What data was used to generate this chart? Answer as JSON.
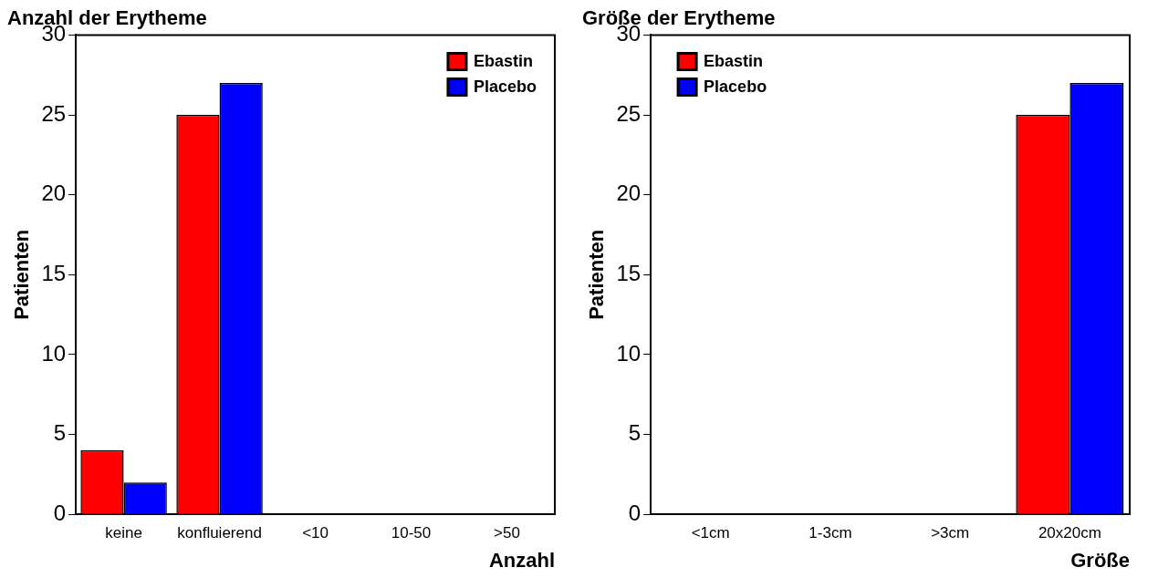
{
  "chart_data": [
    {
      "type": "bar",
      "title": "Anzahl der Erytheme",
      "xlabel": "Anzahl",
      "ylabel": "Patienten",
      "categories": [
        "keine",
        "konfluierend",
        "<10",
        "10-50",
        ">50"
      ],
      "series": [
        {
          "name": "Ebastin",
          "color": "#ff0000",
          "values": [
            4,
            25,
            0,
            0,
            0
          ]
        },
        {
          "name": "Placebo",
          "color": "#0000ff",
          "values": [
            2,
            27,
            0,
            0,
            0
          ]
        }
      ],
      "ylim": [
        0,
        30
      ],
      "yticks": [
        0,
        5,
        10,
        15,
        20,
        25,
        30
      ],
      "grid": false,
      "legend": "top right"
    },
    {
      "type": "bar",
      "title": "Größe der Erytheme",
      "xlabel": "Größe",
      "ylabel": "Patienten",
      "categories": [
        "<1cm",
        "1-3cm",
        ">3cm",
        "20x20cm"
      ],
      "series": [
        {
          "name": "Ebastin",
          "color": "#ff0000",
          "values": [
            0,
            0,
            0,
            25
          ]
        },
        {
          "name": "Placebo",
          "color": "#0000ff",
          "values": [
            0,
            0,
            0,
            27
          ]
        }
      ],
      "ylim": [
        0,
        30
      ],
      "yticks": [
        0,
        5,
        10,
        15,
        20,
        25,
        30
      ],
      "grid": false,
      "legend": "top left"
    }
  ]
}
